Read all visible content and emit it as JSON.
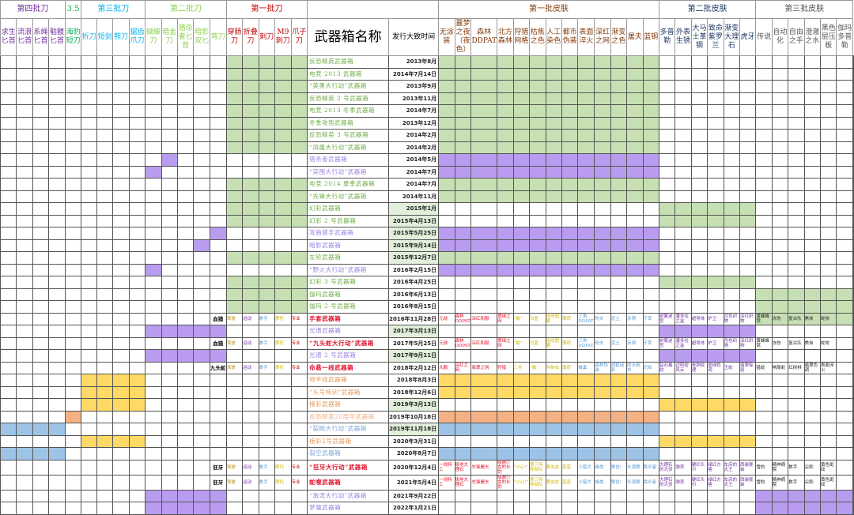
{
  "sheet": {
    "colors": {
      "green": "#c6e0b4",
      "purple": "#b99cf0",
      "yellow": "#ffd966",
      "orange": "#f4b183",
      "blue": "#9dc3e6"
    },
    "group_headers": [
      {
        "label": "第四批刀",
        "span": 4,
        "color": "#7030a0"
      },
      {
        "label": "3.5",
        "span": 1,
        "color": "#00b050"
      },
      {
        "label": "第三批刀",
        "span": 4,
        "color": "#00b0f0"
      },
      {
        "label": "第二批刀",
        "span": 5,
        "color": "#92d050"
      },
      {
        "label": "第一批刀",
        "span": 5,
        "color": "#c00000"
      },
      {
        "label": "",
        "span": 2,
        "color": "#000"
      },
      {
        "label": "第一批皮肤",
        "span": 13,
        "color": "#833c0b"
      },
      {
        "label": "第二批皮肤",
        "span": 6,
        "color": "#1f3864"
      },
      {
        "label": "第三批皮肤",
        "span": 6,
        "color": "#555"
      }
    ],
    "columns": [
      {
        "label": "求生匕首",
        "color": "#7030a0"
      },
      {
        "label": "流浪匕首",
        "color": "#7030a0"
      },
      {
        "label": "系绳匕首",
        "color": "#7030a0"
      },
      {
        "label": "骷髅匕首",
        "color": "#7030a0"
      },
      {
        "label": "海豹短刀",
        "color": "#00b050"
      },
      {
        "label": "折刀",
        "color": "#00b0f0"
      },
      {
        "label": "短剑",
        "color": "#00b0f0"
      },
      {
        "label": "熊刀",
        "color": "#00b0f0"
      },
      {
        "label": "锯齿爪刀",
        "color": "#00b0f0"
      },
      {
        "label": "蝴蝶刀",
        "color": "#92d050"
      },
      {
        "label": "暗金刀",
        "color": "#92d050"
      },
      {
        "label": "猎杀者匕首",
        "color": "#92d050"
      },
      {
        "label": "暗影双匕",
        "color": "#92d050"
      },
      {
        "label": "弯刀",
        "color": "#92d050"
      },
      {
        "label": "穿肠刀",
        "color": "#c00000"
      },
      {
        "label": "折叠刀",
        "color": "#c00000"
      },
      {
        "label": "刺刀",
        "color": "#c00000"
      },
      {
        "label": "M9刺刀",
        "color": "#c00000"
      },
      {
        "label": "爪子刀",
        "color": "#c00000"
      },
      {
        "label": "武器箱名称",
        "color": "#000"
      },
      {
        "label": "发行大致时间",
        "color": "#000"
      },
      {
        "label": "无涂装",
        "color": "#833c0b"
      },
      {
        "label": "噩梦之夜（夜色）",
        "color": "#833c0b"
      },
      {
        "label": "森林DDPAT",
        "color": "#833c0b"
      },
      {
        "label": "北方森林",
        "color": "#833c0b"
      },
      {
        "label": "狩猎网格",
        "color": "#833c0b"
      },
      {
        "label": "枯焦之色",
        "color": "#833c0b"
      },
      {
        "label": "人工染色",
        "color": "#833c0b"
      },
      {
        "label": "都市伪装",
        "color": "#833c0b"
      },
      {
        "label": "表面淬火",
        "color": "#833c0b"
      },
      {
        "label": "深红之网",
        "color": "#833c0b"
      },
      {
        "label": "渐变之色",
        "color": "#833c0b"
      },
      {
        "label": "屠夫",
        "color": "#833c0b"
      },
      {
        "label": "蓝钢",
        "color": "#833c0b"
      },
      {
        "label": "多普勒",
        "color": "#1f3864"
      },
      {
        "label": "外表生锈",
        "color": "#1f3864"
      },
      {
        "label": "大马士革钢",
        "color": "#1f3864"
      },
      {
        "label": "致命紫罗兰",
        "color": "#1f3864"
      },
      {
        "label": "渐变大理石",
        "color": "#1f3864"
      },
      {
        "label": "虎牙",
        "color": "#1f3864"
      },
      {
        "label": "传说",
        "color": "#555"
      },
      {
        "label": "自动化",
        "color": "#555"
      },
      {
        "label": "自由之手",
        "color": "#555"
      },
      {
        "label": "澄澈之水",
        "color": "#555"
      },
      {
        "label": "黑色层压板",
        "color": "#555"
      },
      {
        "label": "伽玛多普勒",
        "color": "#555"
      }
    ],
    "rows": [
      {
        "name": "反恐精英武器箱",
        "date": "2013年8月",
        "color": "#70ad47"
      },
      {
        "name": "电竞 2013 武器箱",
        "date": "2014年7月14日",
        "color": "#70ad47"
      },
      {
        "name": "“英勇大行动”武器箱",
        "date": "2013年9月",
        "color": "#70ad47"
      },
      {
        "name": "反恐精英 2 号武器箱",
        "date": "2013年11月",
        "color": "#70ad47"
      },
      {
        "name": "电竞 2013 冬季武器箱",
        "date": "2014年7月",
        "color": "#70ad47"
      },
      {
        "name": "冬季攻势武器箱",
        "date": "2013年12月",
        "color": "#70ad47"
      },
      {
        "name": "反恐精英 3 号武器箱",
        "date": "2014年2月",
        "color": "#70ad47"
      },
      {
        "name": "“凤凰大行动”武器箱",
        "date": "2014年2月",
        "color": "#70ad47"
      },
      {
        "name": "猎杀者武器箱",
        "date": "2014年5月",
        "color": "#9b82e0"
      },
      {
        "name": "“突围大行动”武器箱",
        "date": "2014年7月",
        "color": "#9b82e0"
      },
      {
        "name": "电竞 2014 夏季武器箱",
        "date": "2014年7月",
        "color": "#70ad47"
      },
      {
        "name": "“先锋大行动”武器箱",
        "date": "2014年11月",
        "color": "#70ad47"
      },
      {
        "name": "幻彩武器箱",
        "date": "2015年1月",
        "color": "#70ad47"
      },
      {
        "name": "幻彩 2 号武器箱",
        "date": "2015年4月13日",
        "color": "#70ad47"
      },
      {
        "name": "弯曲猎手武器箱",
        "date": "2015年5月25日",
        "color": "#9b82e0"
      },
      {
        "name": "暗影武器箱",
        "date": "2015年9月14日",
        "color": "#9b82e0"
      },
      {
        "name": "左轮武器箱",
        "date": "2015年12月7日",
        "color": "#70ad47"
      },
      {
        "name": "“野火大行动”武器箱",
        "date": "2016年2月15日",
        "color": "#9b82e0"
      },
      {
        "name": "幻彩 3 号武器箱",
        "date": "2016年4月25日",
        "color": "#70ad47"
      },
      {
        "name": "伽玛武器箱",
        "date": "2016年6月13日",
        "color": "#70ad47"
      },
      {
        "name": "伽玛 2 号武器箱",
        "date": "2016年8月15日",
        "color": "#70ad47"
      },
      {
        "name": "手套武器箱",
        "date": "2016年11月28日",
        "color": "#e0142d",
        "weapon": "血猎"
      },
      {
        "name": "光谱武器箱",
        "date": "2017年3月13日",
        "color": "#9b82e0"
      },
      {
        "name": "“九头蛇大行动”武器箱",
        "date": "2017年5月25日",
        "color": "#e0142d",
        "weapon": "血猎"
      },
      {
        "name": "光谱 2 号武器箱",
        "date": "2017年9月11日",
        "color": "#9b82e0"
      },
      {
        "name": "命悬一线武器箱",
        "date": "2018年2月12日",
        "color": "#e0142d",
        "weapon": "九头蛇"
      },
      {
        "name": "地平线武器箱",
        "date": "2018年8月3日",
        "color": "#e6995a"
      },
      {
        "name": "“头号特训”武器箱",
        "date": "2018年12月6日",
        "color": "#e6995a"
      },
      {
        "name": "棱彩武器箱",
        "date": "2019年3月13日",
        "color": "#e6995a"
      },
      {
        "name": "反恐精英20周年武器箱",
        "date": "2019年10月18日",
        "color": "#f4b183"
      },
      {
        "name": "“裂网大行动”武器箱",
        "date": "2019年11月18日",
        "color": "#7aa7d6"
      },
      {
        "name": "棱彩2号武器箱",
        "date": "2020年3月31日",
        "color": "#e6995a"
      },
      {
        "name": "裂空武器箱",
        "date": "2020年8月7日",
        "color": "#7aa7d6"
      },
      {
        "name": "“狂牙大行动”武器箱",
        "date": "2020年12月4日",
        "color": "#e0142d",
        "weapon": "狂牙"
      },
      {
        "name": "蛇噬武器箱",
        "date": "2021年5月4日",
        "color": "#e0142d",
        "weapon": "狂牙"
      },
      {
        "name": "“激流大行动”武器箱",
        "date": "2021年9月22日",
        "color": "#9b82e0"
      },
      {
        "name": "梦魇武器箱",
        "date": "2022年1月21日",
        "color": "#9b82e0"
      }
    ],
    "glove_types": [
      "驾驶",
      "运动",
      "裹手",
      "摩托",
      "专业"
    ],
    "glove_skins": {
      "bloodhound": [
        "元勋",
        "森林DDPAT",
        "深红和服",
        "翠绿之网",
        "“敏”",
        "白蓝",
        "迷岸图案",
        "薄荷",
        "三角DDPAT",
        "粉夫",
        "泥土",
        "赤铜",
        "干草"
      ],
      "bloodhound_2": [
        "树篱迷宫",
        "潘多拉之盒",
        "超导体",
        "护卫",
        "月色织物",
        "深红织物",
        "黄蜂蜂窝",
        "冻伤",
        "复古队",
        "焦炭",
        "蛇咬"
      ],
      "hydra": [
        "大鹏",
        "深红之网",
        "翡翠之网",
        "狩猎",
        "三色",
        "“敏”",
        "冲锋衣",
        "薄荷",
        "蜂巢",
        "森林伪装",
        "战狐迷彩",
        "防水帆布",
        "炽焰"
      ],
      "hydra_2": [
        "钻石格纹",
        "迈阿密风云",
        "青铜纹理",
        "墨绿色调",
        "王蛇",
        "翡翠棕斑",
        "猛蛇",
        "响尾蛇",
        "红树林",
        "翡翠色调",
        "表面淬火"
      ],
      "broken_fang": [
        "一线特工",
        "极地大理石",
        "先锋屠夫",
        "暗器少女的长剑",
        "“小心!”",
        "第三特种部队",
        "爬虫皮",
        "蓝蓝",
        "小猎犬",
        "蜂炮",
        "警告!",
        "长颈鹿",
        "跳伞者"
      ],
      "broken_fang_2": [
        "大理石的大侦",
        "弹壳",
        "硬红头巾",
        "绿红方格",
        "车床的大王",
        "西装套装",
        "雪豹",
        "精神病院",
        "数字",
        "尖刺",
        "黄色斑纹"
      ]
    },
    "fills": {
      "knife_bars": [
        {
          "rows": [
            0,
            7
          ],
          "cols": [
            14,
            18
          ],
          "color": "green"
        },
        {
          "rows": [
            8,
            8
          ],
          "cols": [
            10,
            10
          ],
          "color": "purple"
        },
        {
          "rows": [
            9,
            9
          ],
          "cols": [
            9,
            9
          ],
          "color": "purple"
        },
        {
          "rows": [
            10,
            11
          ],
          "cols": [
            14,
            18
          ],
          "color": "green"
        },
        {
          "rows": [
            12,
            13
          ],
          "cols": [
            14,
            18
          ],
          "color": "green"
        },
        {
          "rows": [
            14,
            14
          ],
          "cols": [
            13,
            13
          ],
          "color": "purple"
        },
        {
          "rows": [
            15,
            15
          ],
          "cols": [
            12,
            12
          ],
          "color": "purple"
        },
        {
          "rows": [
            16,
            16
          ],
          "cols": [
            14,
            18
          ],
          "color": "green"
        },
        {
          "rows": [
            17,
            17
          ],
          "cols": [
            9,
            9
          ],
          "color": "purple"
        },
        {
          "rows": [
            18,
            20
          ],
          "cols": [
            14,
            18
          ],
          "color": "green"
        },
        {
          "rows": [
            22,
            22
          ],
          "cols": [
            9,
            13
          ],
          "color": "purple"
        },
        {
          "rows": [
            24,
            24
          ],
          "cols": [
            9,
            13
          ],
          "color": "purple"
        },
        {
          "rows": [
            26,
            28
          ],
          "cols": [
            5,
            8
          ],
          "color": "yellow"
        },
        {
          "rows": [
            29,
            29
          ],
          "cols": [
            4,
            4
          ],
          "color": "orange"
        },
        {
          "rows": [
            30,
            30
          ],
          "cols": [
            0,
            3
          ],
          "color": "blue"
        },
        {
          "rows": [
            31,
            31
          ],
          "cols": [
            5,
            8
          ],
          "color": "yellow"
        },
        {
          "rows": [
            32,
            32
          ],
          "cols": [
            0,
            3
          ],
          "color": "blue"
        },
        {
          "rows": [
            35,
            36
          ],
          "cols": [
            9,
            13
          ],
          "color": "purple"
        }
      ]
    }
  }
}
